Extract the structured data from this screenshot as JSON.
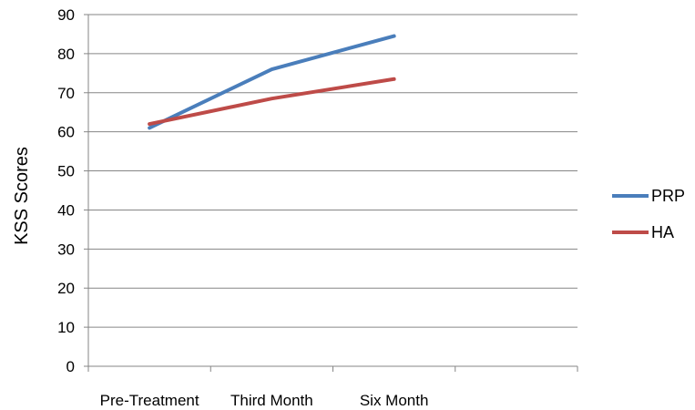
{
  "chart_data": {
    "type": "line",
    "title": "",
    "xlabel": "",
    "ylabel": "KSS Scores",
    "categories": [
      "Pre-Treatment",
      "Third Month",
      "Six Month"
    ],
    "ylim": [
      0,
      90
    ],
    "yticks": [
      0,
      10,
      20,
      30,
      40,
      50,
      60,
      70,
      80,
      90
    ],
    "grid": true,
    "legend_position": "right",
    "series": [
      {
        "name": "PRP",
        "values": [
          61,
          76,
          84.5
        ],
        "color": "#4a7ebb"
      },
      {
        "name": "HA",
        "values": [
          62,
          68.5,
          73.5
        ],
        "color": "#be4b48"
      }
    ]
  }
}
